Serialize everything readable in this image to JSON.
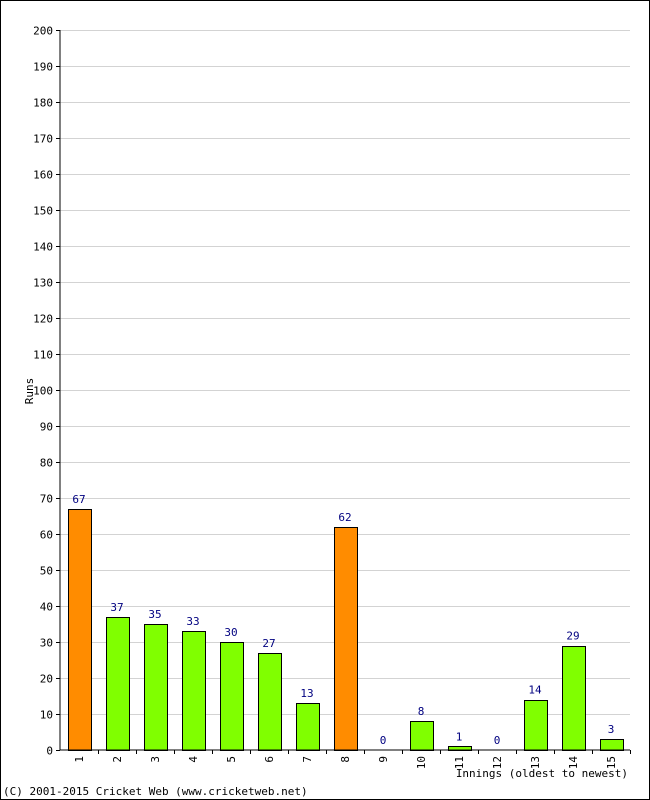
{
  "chart_data": {
    "type": "bar",
    "title": "",
    "xlabel": "Innings (oldest to newest)",
    "ylabel": "Runs",
    "categories": [
      "1",
      "2",
      "3",
      "4",
      "5",
      "6",
      "7",
      "8",
      "9",
      "10",
      "11",
      "12",
      "13",
      "14",
      "15"
    ],
    "values": [
      67,
      37,
      35,
      33,
      30,
      27,
      13,
      62,
      0,
      8,
      1,
      0,
      14,
      29,
      3
    ],
    "data_labels": [
      "67",
      "37",
      "35",
      "33",
      "30",
      "27",
      "13",
      "62",
      "0",
      "8",
      "1",
      "0",
      "14",
      "29",
      "3"
    ],
    "ylim": [
      0,
      200
    ],
    "yticks": [
      0,
      10,
      20,
      30,
      40,
      50,
      60,
      70,
      80,
      90,
      100,
      110,
      120,
      130,
      140,
      150,
      160,
      170,
      180,
      190,
      200
    ],
    "ytick_labels": [
      "0",
      "10",
      "20",
      "30",
      "40",
      "50",
      "60",
      "70",
      "80",
      "90",
      "100",
      "110",
      "120",
      "130",
      "140",
      "150",
      "160",
      "170",
      "180",
      "190",
      "200"
    ],
    "grid": true,
    "highlight_threshold": 50,
    "colors": {
      "bar": "#80ff00",
      "highlight_bar": "#ff8c00",
      "bar_outline": "#000000",
      "grid": "#d3d3d3",
      "data_label": "#000080"
    }
  },
  "footer": {
    "copyright": "(C) 2001-2015 Cricket Web (www.cricketweb.net)"
  }
}
